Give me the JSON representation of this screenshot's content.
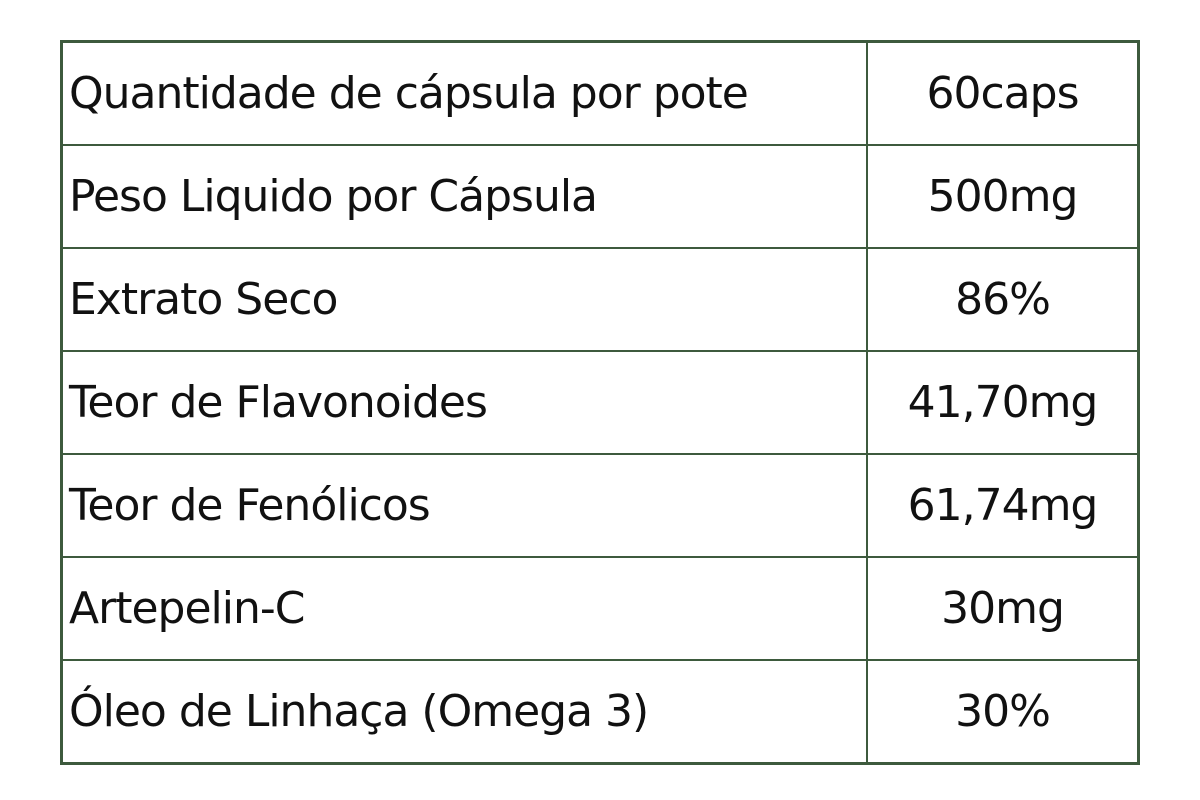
{
  "table": {
    "rows": [
      {
        "label": "Quantidade de cápsula por pote",
        "value": "60caps"
      },
      {
        "label": "Peso Liquido por Cápsula",
        "value": "500mg"
      },
      {
        "label": "Extrato Seco",
        "value": "86%"
      },
      {
        "label": "Teor de Flavonoides",
        "value": "41,70mg"
      },
      {
        "label": "Teor de Fenólicos",
        "value": "61,74mg"
      },
      {
        "label": "Artepelin-C",
        "value": "30mg"
      },
      {
        "label": "Óleo de Linhaça (Omega 3)",
        "value": "30%"
      }
    ]
  },
  "colors": {
    "border": "#3d5a3d",
    "text": "#111111",
    "background": "#ffffff"
  }
}
